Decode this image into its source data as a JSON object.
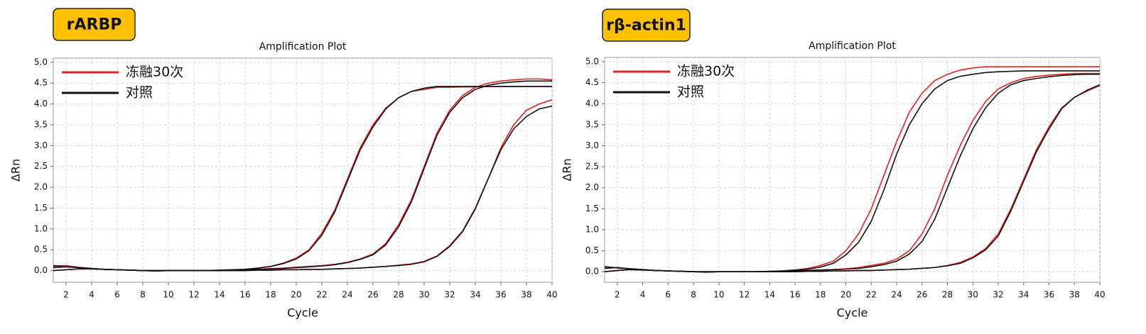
{
  "chart_data": [
    {
      "type": "line",
      "tag": "rARBP",
      "title": "Amplification Plot",
      "xlabel": "Cycle",
      "ylabel": "ΔRn",
      "grid": true,
      "legend": "upper left",
      "x": [
        1,
        2,
        3,
        4,
        5,
        6,
        7,
        8,
        9,
        10,
        11,
        12,
        13,
        14,
        15,
        16,
        17,
        18,
        19,
        20,
        21,
        22,
        23,
        24,
        25,
        26,
        27,
        28,
        29,
        30,
        31,
        32,
        33,
        34,
        35,
        36,
        37,
        38,
        39,
        40
      ],
      "xlim": [
        1,
        40
      ],
      "xticks": [
        2,
        4,
        6,
        8,
        10,
        12,
        14,
        16,
        18,
        20,
        22,
        24,
        26,
        28,
        30,
        32,
        34,
        36,
        38,
        40
      ],
      "ylim": [
        -0.28,
        5.1
      ],
      "yticks": [
        {
          "value": 0,
          "label": "0.0"
        },
        {
          "value": 0.5,
          "label": "0.5"
        },
        {
          "value": 1,
          "label": "1.0"
        },
        {
          "value": 1.5,
          "label": "1.5"
        },
        {
          "value": 2,
          "label": "2.0"
        },
        {
          "value": 2.5,
          "label": "2.5"
        },
        {
          "value": 3,
          "label": "3.0"
        },
        {
          "value": 3.5,
          "label": "3.5"
        },
        {
          "value": 4,
          "label": "4.0"
        },
        {
          "value": 4.5,
          "label": "4.5"
        },
        {
          "value": 5,
          "label": "5.0"
        }
      ],
      "series": [
        {
          "name": "冻融30次",
          "color": "#e8201e",
          "values": [
            [
              0.1,
              0.12,
              0.08,
              0.05,
              0.03,
              0.02,
              0.01,
              0,
              -0.01,
              0,
              0,
              0,
              0,
              0.01,
              0.02,
              0.03,
              0.06,
              0.1,
              0.18,
              0.3,
              0.5,
              0.9,
              1.45,
              2.2,
              2.95,
              3.5,
              3.9,
              4.15,
              4.3,
              4.35,
              4.4,
              4.4,
              4.41,
              4.41,
              4.42,
              4.42,
              4.42,
              4.42,
              4.42,
              4.42
            ],
            [
              0,
              0.02,
              0.04,
              0.04,
              0.03,
              0.02,
              0.01,
              0,
              0,
              0,
              0,
              0,
              0,
              0,
              0.01,
              0.02,
              0.03,
              0.05,
              0.06,
              0.08,
              0.1,
              0.12,
              0.15,
              0.2,
              0.28,
              0.4,
              0.65,
              1.1,
              1.7,
              2.5,
              3.3,
              3.85,
              4.2,
              4.4,
              4.5,
              4.55,
              4.58,
              4.6,
              4.6,
              4.58
            ],
            [
              0.12,
              0.1,
              0.07,
              0.05,
              0.03,
              0.02,
              0.01,
              0,
              0,
              0,
              0,
              0,
              0,
              0,
              0,
              0,
              0.01,
              0.01,
              0.02,
              0.02,
              0.03,
              0.03,
              0.04,
              0.05,
              0.06,
              0.08,
              0.1,
              0.13,
              0.16,
              0.22,
              0.35,
              0.6,
              0.95,
              1.5,
              2.2,
              2.95,
              3.5,
              3.85,
              4.0,
              4.1
            ]
          ]
        },
        {
          "name": "对照",
          "color": "#111111",
          "values": [
            [
              0.07,
              0.09,
              0.07,
              0.05,
              0.03,
              0.02,
              0.01,
              0,
              -0.01,
              0,
              0,
              0,
              0,
              0.01,
              0.02,
              0.03,
              0.06,
              0.1,
              0.17,
              0.28,
              0.48,
              0.85,
              1.4,
              2.15,
              2.9,
              3.45,
              3.88,
              4.15,
              4.3,
              4.38,
              4.42,
              4.42,
              4.42,
              4.42,
              4.42,
              4.42,
              4.42,
              4.42,
              4.42,
              4.42
            ],
            [
              0,
              0.02,
              0.04,
              0.04,
              0.03,
              0.02,
              0.01,
              0,
              0,
              0,
              0,
              0,
              0,
              0,
              0.01,
              0.02,
              0.03,
              0.04,
              0.05,
              0.07,
              0.09,
              0.11,
              0.14,
              0.19,
              0.27,
              0.38,
              0.62,
              1.05,
              1.65,
              2.45,
              3.25,
              3.8,
              4.15,
              4.35,
              4.45,
              4.5,
              4.53,
              4.55,
              4.55,
              4.55
            ],
            [
              0.12,
              0.1,
              0.07,
              0.05,
              0.03,
              0.02,
              0.01,
              0,
              0,
              0,
              0,
              0,
              0,
              0,
              0,
              0,
              0.01,
              0.01,
              0.02,
              0.02,
              0.03,
              0.03,
              0.04,
              0.05,
              0.06,
              0.08,
              0.1,
              0.12,
              0.15,
              0.21,
              0.34,
              0.58,
              0.93,
              1.48,
              2.2,
              2.9,
              3.4,
              3.7,
              3.88,
              3.95
            ]
          ]
        }
      ]
    },
    {
      "type": "line",
      "tag": "rβ-actin1",
      "title": "Amplification Plot",
      "xlabel": "Cycle",
      "ylabel": "ΔRn",
      "grid": true,
      "legend": "upper left",
      "x": [
        1,
        2,
        3,
        4,
        5,
        6,
        7,
        8,
        9,
        10,
        11,
        12,
        13,
        14,
        15,
        16,
        17,
        18,
        19,
        20,
        21,
        22,
        23,
        24,
        25,
        26,
        27,
        28,
        29,
        30,
        31,
        32,
        33,
        34,
        35,
        36,
        37,
        38,
        39,
        40
      ],
      "xlim": [
        1,
        40
      ],
      "xticks": [
        2,
        4,
        6,
        8,
        10,
        12,
        14,
        16,
        18,
        20,
        22,
        24,
        26,
        28,
        30,
        32,
        34,
        36,
        38,
        40
      ],
      "ylim": [
        -0.25,
        5.1
      ],
      "yticks": [
        {
          "value": 0,
          "label": "0.0"
        },
        {
          "value": 0.5,
          "label": "0.5"
        },
        {
          "value": 1,
          "label": "1.0"
        },
        {
          "value": 1.5,
          "label": "1.5"
        },
        {
          "value": 2,
          "label": "2.0"
        },
        {
          "value": 2.5,
          "label": "2.5"
        },
        {
          "value": 3,
          "label": "3.0"
        },
        {
          "value": 3.5,
          "label": "3.5"
        },
        {
          "value": 4,
          "label": "4.0"
        },
        {
          "value": 4.5,
          "label": "4.5"
        },
        {
          "value": 5,
          "label": "5.0"
        }
      ],
      "series": [
        {
          "name": "冻融30次",
          "color": "#e8201e",
          "values": [
            [
              0.08,
              0.1,
              0.07,
              0.05,
              0.03,
              0.02,
              0.01,
              0,
              -0.01,
              0,
              0,
              0,
              0,
              0.01,
              0.02,
              0.04,
              0.08,
              0.15,
              0.25,
              0.5,
              0.9,
              1.5,
              2.3,
              3.1,
              3.8,
              4.25,
              4.55,
              4.7,
              4.8,
              4.85,
              4.88,
              4.88,
              4.88,
              4.88,
              4.88,
              4.88,
              4.88,
              4.88,
              4.88,
              4.88
            ],
            [
              0,
              0.03,
              0.05,
              0.04,
              0.03,
              0.02,
              0.01,
              0,
              0,
              0,
              0,
              0,
              0,
              0,
              0.01,
              0.02,
              0.03,
              0.04,
              0.05,
              0.07,
              0.1,
              0.15,
              0.2,
              0.3,
              0.5,
              0.9,
              1.5,
              2.3,
              3.0,
              3.6,
              4.05,
              4.35,
              4.5,
              4.6,
              4.65,
              4.68,
              4.7,
              4.72,
              4.72,
              4.72
            ],
            [
              0.12,
              0.09,
              0.07,
              0.05,
              0.03,
              0.02,
              0.01,
              0,
              0,
              0,
              0,
              0,
              0,
              0,
              0,
              0,
              0.01,
              0.01,
              0.02,
              0.02,
              0.03,
              0.03,
              0.04,
              0.05,
              0.06,
              0.08,
              0.1,
              0.15,
              0.22,
              0.35,
              0.55,
              0.9,
              1.5,
              2.2,
              2.9,
              3.45,
              3.9,
              4.15,
              4.3,
              4.43
            ]
          ]
        },
        {
          "name": "对照",
          "color": "#111111",
          "values": [
            [
              0.08,
              0.1,
              0.07,
              0.05,
              0.03,
              0.02,
              0.01,
              0,
              -0.01,
              0,
              0,
              0,
              0,
              0.01,
              0.02,
              0.04,
              0.06,
              0.11,
              0.2,
              0.4,
              0.7,
              1.2,
              1.95,
              2.8,
              3.5,
              4.0,
              4.35,
              4.55,
              4.65,
              4.7,
              4.74,
              4.76,
              4.77,
              4.78,
              4.78,
              4.78,
              4.78,
              4.78,
              4.78,
              4.78
            ],
            [
              0,
              0.03,
              0.05,
              0.04,
              0.03,
              0.02,
              0.01,
              0,
              0,
              0,
              0,
              0,
              0,
              0,
              0.01,
              0.02,
              0.03,
              0.04,
              0.05,
              0.06,
              0.08,
              0.12,
              0.17,
              0.25,
              0.42,
              0.72,
              1.25,
              2.0,
              2.75,
              3.4,
              3.9,
              4.25,
              4.45,
              4.55,
              4.6,
              4.64,
              4.67,
              4.69,
              4.7,
              4.7
            ],
            [
              0.12,
              0.09,
              0.07,
              0.05,
              0.03,
              0.02,
              0.01,
              0,
              0,
              0,
              0,
              0,
              0,
              0,
              0,
              0,
              0.01,
              0.01,
              0.02,
              0.02,
              0.03,
              0.03,
              0.04,
              0.05,
              0.06,
              0.08,
              0.1,
              0.14,
              0.2,
              0.33,
              0.52,
              0.85,
              1.45,
              2.15,
              2.85,
              3.4,
              3.88,
              4.15,
              4.32,
              4.45
            ]
          ]
        }
      ]
    }
  ]
}
